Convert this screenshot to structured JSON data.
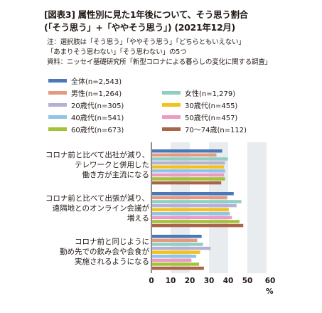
{
  "header": {
    "title_line1": "[図表3] 属性別に見た1年後について、そう思う割合",
    "title_line2": "(「そう思う」+「ややそう思う」) (2021年12月)"
  },
  "notes": {
    "line1": "注：選択肢は「そう思う」「ややそう思う」「どちらともいえない」",
    "line2": "「あまりそう思わない」「そう思わない」の5つ",
    "line3": "資料：ニッセイ基礎研究所「新型コロナによる暮らしの変化に関する調査」"
  },
  "chart_data": {
    "type": "bar",
    "orientation": "horizontal",
    "categories": [
      "コロナ前と比べて出社が減り、\nテレワークと併用した\n働き方が主流になる",
      "コロナ前と比べて出張が減り、\n遠隔地とのオンライン会議が\n増える",
      "コロナ前と同じように\n勤め先での飲み会や会食が\n実施されるようになる"
    ],
    "series": [
      {
        "name": "全体(n=2,543)",
        "color": "#4a78b8",
        "values": [
          36.5,
          42.5,
          25.8
        ]
      },
      {
        "name": "男性(n=1,264)",
        "color": "#e39a80",
        "values": [
          33.5,
          39.0,
          23.5
        ]
      },
      {
        "name": "女性(n=1,279)",
        "color": "#8ecfc2",
        "values": [
          39.5,
          46.5,
          26.5
        ]
      },
      {
        "name": "20歳代(n=305)",
        "color": "#b7b0d6",
        "values": [
          38.0,
          44.0,
          30.5
        ]
      },
      {
        "name": "30歳代(n=455)",
        "color": "#f3c21a",
        "values": [
          37.5,
          40.0,
          25.0
        ]
      },
      {
        "name": "40歳代(n=541)",
        "color": "#8fc4e8",
        "values": [
          38.0,
          40.5,
          23.0
        ]
      },
      {
        "name": "50歳代(n=457)",
        "color": "#ee99c2",
        "values": [
          37.5,
          41.5,
          20.5
        ]
      },
      {
        "name": "60歳代(n=673)",
        "color": "#a4c239",
        "values": [
          38.0,
          45.5,
          24.5
        ]
      },
      {
        "name": "70～74歳(n=112)",
        "color": "#a9654c",
        "values": [
          36.0,
          47.5,
          27.0
        ]
      }
    ],
    "xlim": [
      0,
      60
    ],
    "xticks": [
      "0",
      "10",
      "20",
      "30",
      "40",
      "50",
      "60"
    ],
    "unit": "%",
    "background_bands": true,
    "legend_position": "top"
  }
}
